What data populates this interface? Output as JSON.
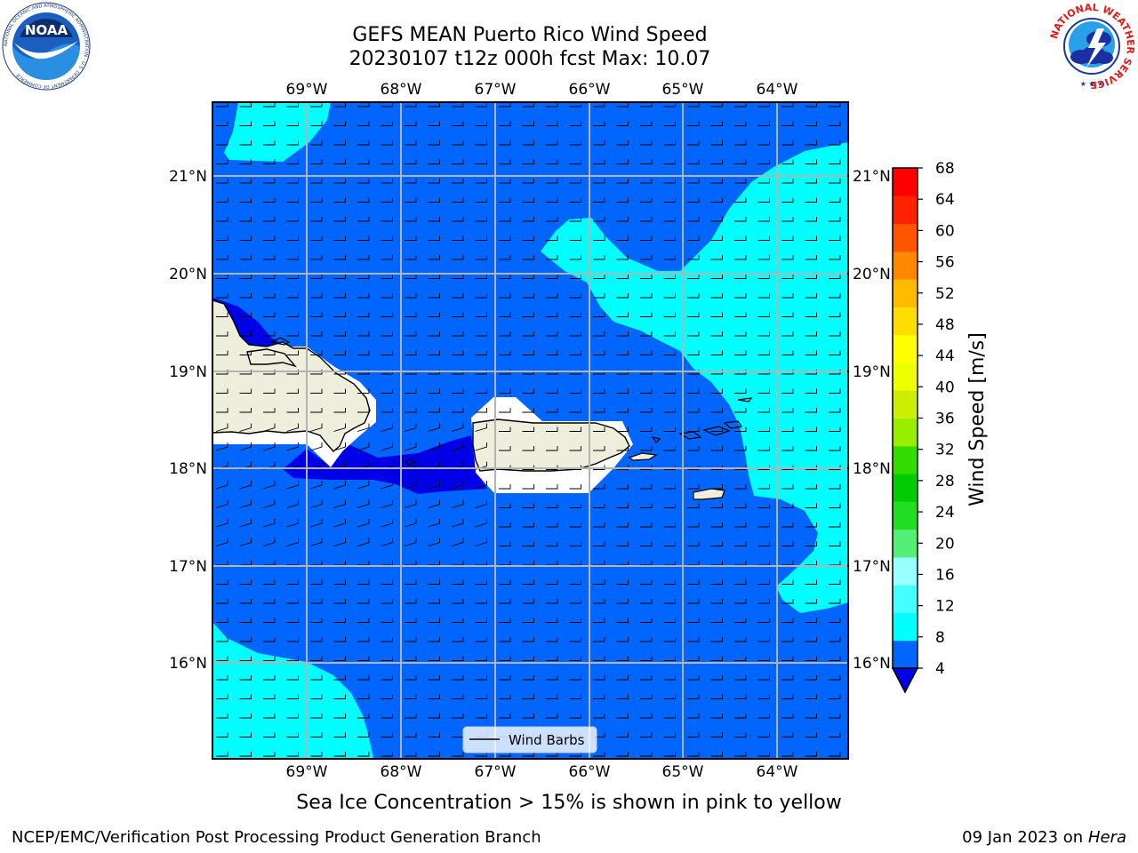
{
  "header": {
    "title_line1": "GEFS MEAN Puerto Rico Wind Speed",
    "title_line2": "20230107 t12z 000h fcst   Max: 10.07",
    "noaa_logo_text": "NOAA",
    "noaa_ring_text": "NATIONAL OCEANIC AND ATMOSPHERIC ADMINISTRATION · U.S. DEPARTMENT OF COMMERCE",
    "nws_ring_text": "NATIONAL WEATHER SERVICE"
  },
  "map": {
    "lon_labels": [
      "69°W",
      "68°W",
      "67°W",
      "66°W",
      "65°W",
      "64°W"
    ],
    "lat_labels": [
      "21°N",
      "20°N",
      "19°N",
      "18°N",
      "17°N",
      "16°N"
    ],
    "extent": {
      "lon_min": -70.0,
      "lon_max": -63.25,
      "lat_min": 15.0,
      "lat_max": 21.75
    },
    "colors": {
      "below_range": "#0000e6",
      "level_4_8": "#0066ff",
      "level_8_12": "#00ffff",
      "land": "#eeeedc",
      "missing": "#ffffff"
    },
    "legend_label": "Wind Barbs"
  },
  "colorbar": {
    "label": "Wind Speed [m/s]",
    "ticks": [
      "4",
      "8",
      "12",
      "16",
      "20",
      "24",
      "28",
      "32",
      "36",
      "40",
      "44",
      "48",
      "52",
      "56",
      "60",
      "64",
      "68"
    ],
    "colors": [
      "#0066ff",
      "#00ffff",
      "#44ffff",
      "#99ffff",
      "#55ee77",
      "#22dd22",
      "#00cc00",
      "#33dd00",
      "#99ee00",
      "#ccee00",
      "#eeff00",
      "#ffff00",
      "#ffdd00",
      "#ffbb00",
      "#ff8800",
      "#ff5500",
      "#ff2200",
      "#ff0000"
    ],
    "under_color": "#0000e6"
  },
  "caption": "Sea Ice Concentration > 15% is shown in pink to yellow",
  "footer": {
    "left": "NCEP/EMC/Verification Post Processing Product Generation Branch",
    "right_prefix": "09 Jan 2023 on ",
    "right_host": "Hera"
  }
}
